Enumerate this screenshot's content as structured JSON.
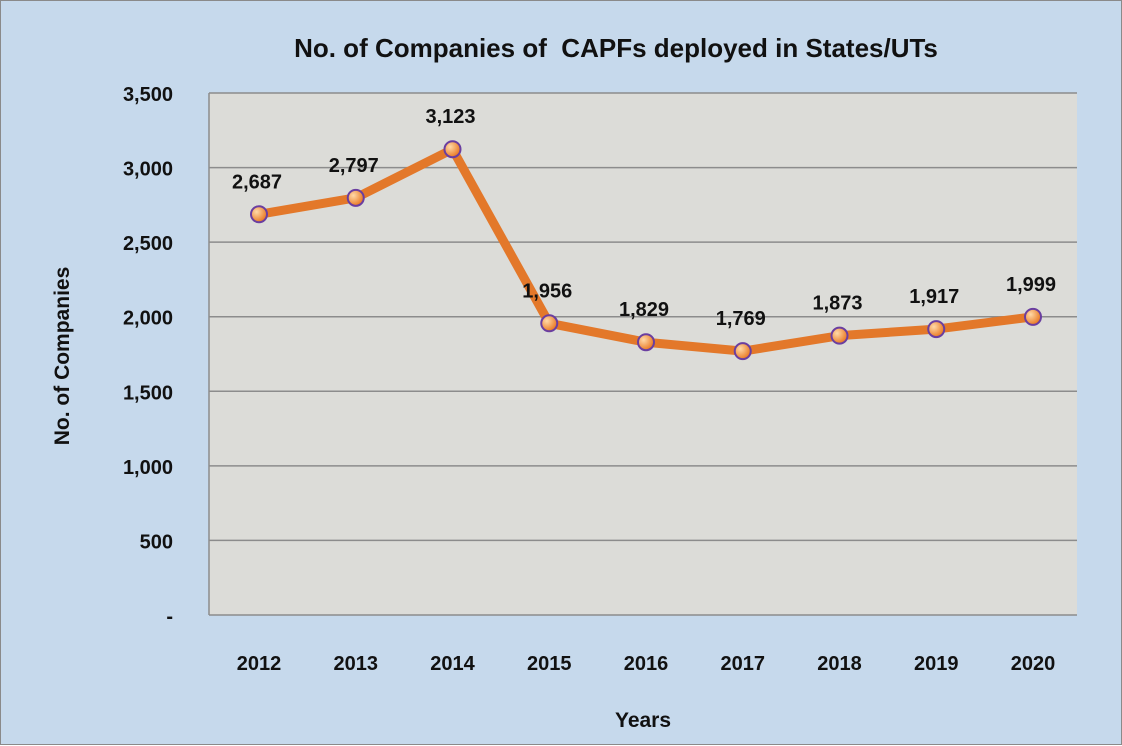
{
  "chart_data": {
    "type": "line",
    "title": "No. of Companies of  CAPFs deployed in States/UTs",
    "xlabel": "Years",
    "ylabel": "No. of Companies",
    "categories": [
      "2012",
      "2013",
      "2014",
      "2015",
      "2016",
      "2017",
      "2018",
      "2019",
      "2020"
    ],
    "series": [
      {
        "values": [
          2687,
          2797,
          3123,
          1956,
          1829,
          1769,
          1873,
          1917,
          1999
        ]
      }
    ],
    "data_labels": [
      "2,687",
      "2,797",
      "3,123",
      "1,956",
      "1,829",
      "1,769",
      "1,873",
      "1,917",
      "1,999"
    ],
    "ylim": [
      0,
      3500
    ],
    "yticks": [
      0,
      500,
      1000,
      1500,
      2000,
      2500,
      3000,
      3500
    ],
    "ytick_labels": [
      "-",
      "500",
      "1,000",
      "1,500",
      "2,000",
      "2,500",
      "3,000",
      "3,500"
    ],
    "grid": true,
    "legend": "none",
    "colors": {
      "background": "#c6d9ec",
      "plot_area": "#dcdcd8",
      "gridline": "#8c8c8c",
      "line": "#e3782a",
      "marker_fill": "#f08a2c",
      "marker_edge": "#6a3ea0"
    }
  }
}
